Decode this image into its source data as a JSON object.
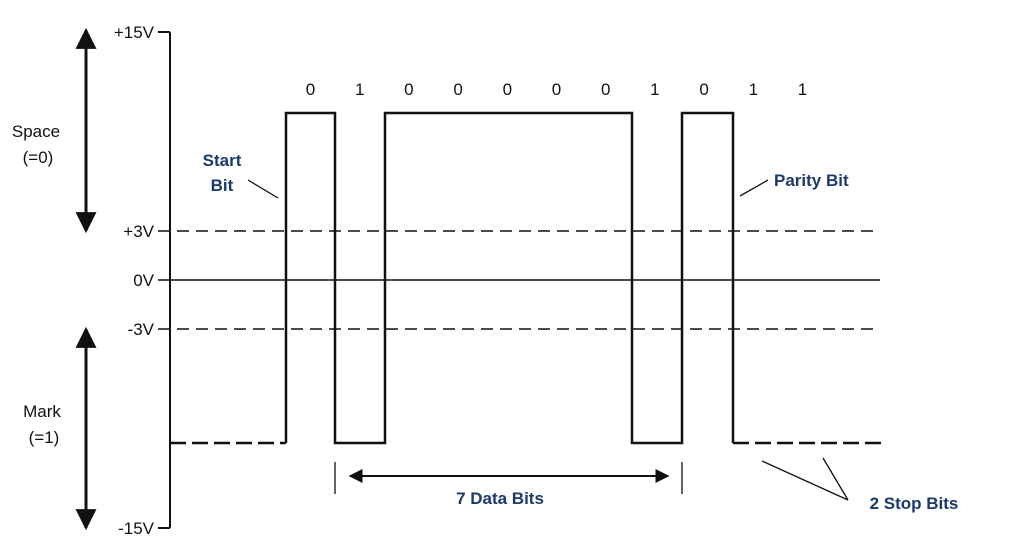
{
  "levels": {
    "plus15": "+15V",
    "plus3": "+3V",
    "zero": "0V",
    "minus3": "-3V",
    "minus15": "-15V"
  },
  "states": {
    "space_line1": "Space",
    "space_line2": "(=0)",
    "mark_line1": "Mark",
    "mark_line2": "(=1)"
  },
  "bits": [
    "0",
    "1",
    "0",
    "0",
    "0",
    "0",
    "0",
    "1",
    "0",
    "1",
    "1"
  ],
  "annotations": {
    "start_line1": "Start",
    "start_line2": "Bit",
    "parity": "Parity Bit",
    "data_bits": "7 Data Bits",
    "stop_bits": "2 Stop Bits"
  },
  "colors": {
    "line": "#111111",
    "annotation": "#1a3a6e"
  }
}
